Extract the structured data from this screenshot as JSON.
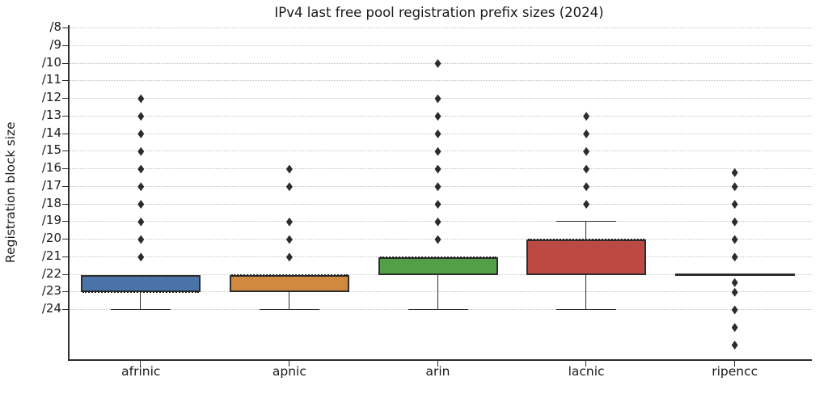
{
  "chart_data": {
    "type": "boxplot",
    "title": "IPv4 last free pool registration prefix sizes (2024)",
    "ylabel": "Registration block size",
    "xlabel": "",
    "y_axis": {
      "tick_values": [
        8,
        9,
        10,
        11,
        12,
        13,
        14,
        15,
        16,
        17,
        18,
        19,
        20,
        21,
        22,
        23,
        24
      ],
      "tick_labels": [
        "/8",
        "/9",
        "/10",
        "/11",
        "/12",
        "/13",
        "/14",
        "/15",
        "/16",
        "/17",
        "/18",
        "/19",
        "/20",
        "/21",
        "/22",
        "/23",
        "/24"
      ],
      "value_at_top": 7.8,
      "value_at_bottom": 26.8,
      "grid": "dotted horizontal lines at each labeled tick only"
    },
    "categories": [
      "afrinic",
      "apnic",
      "arin",
      "lacnic",
      "ripencc"
    ],
    "boxes": [
      {
        "category": "afrinic",
        "fill": "#4a73a9",
        "box_min": 22,
        "box_max": 23,
        "median": 23,
        "whisker_min": 22,
        "whisker_max": 24,
        "outliers": [
          12,
          13,
          14,
          15,
          16,
          17,
          18,
          19,
          20,
          21
        ]
      },
      {
        "category": "apnic",
        "fill": "#d0893e",
        "box_min": 22,
        "box_max": 23,
        "median": 22,
        "whisker_min": 22,
        "whisker_max": 24,
        "outliers": [
          16,
          17,
          19,
          20,
          21
        ]
      },
      {
        "category": "arin",
        "fill": "#529f47",
        "box_min": 21,
        "box_max": 22,
        "median": 21,
        "whisker_min": 21,
        "whisker_max": 24,
        "outliers": [
          10,
          12,
          13,
          14,
          15,
          16,
          17,
          18,
          19,
          20
        ]
      },
      {
        "category": "lacnic",
        "fill": "#bc4a42",
        "box_min": 20,
        "box_max": 22,
        "median": 20,
        "whisker_min": 19,
        "whisker_max": 24,
        "outliers": [
          13,
          14,
          15,
          16,
          17,
          18
        ]
      },
      {
        "category": "ripencc",
        "fill": null,
        "box_min": 22,
        "box_max": 22,
        "median": 22,
        "whisker_min": 22,
        "whisker_max": 22,
        "outliers": [
          16.2,
          17,
          18,
          19,
          20,
          21,
          22.45,
          23,
          24,
          25,
          26
        ]
      }
    ],
    "marker": "thin-diamond",
    "style": {
      "edge_color": "#2d2d2d",
      "grid_color": "#c2c2c2",
      "text_color": "#1a1a1a",
      "median_style": "dotted",
      "background": "#ffffff"
    }
  }
}
